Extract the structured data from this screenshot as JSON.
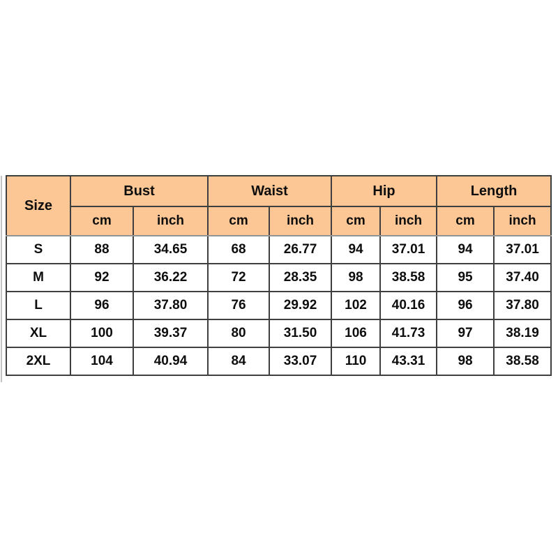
{
  "table": {
    "corner_label": "Size",
    "groups": [
      {
        "label": "Bust"
      },
      {
        "label": "Waist"
      },
      {
        "label": "Hip"
      },
      {
        "label": "Length"
      }
    ],
    "unit_labels": [
      "cm",
      "inch",
      "cm",
      "inch",
      "cm",
      "inch",
      "cm",
      "inch"
    ],
    "rows": [
      {
        "size": "S",
        "values": [
          "88",
          "34.65",
          "68",
          "26.77",
          "94",
          "37.01",
          "94",
          "37.01"
        ]
      },
      {
        "size": "M",
        "values": [
          "92",
          "36.22",
          "72",
          "28.35",
          "98",
          "38.58",
          "95",
          "37.40"
        ]
      },
      {
        "size": "L",
        "values": [
          "96",
          "37.80",
          "76",
          "29.92",
          "102",
          "40.16",
          "96",
          "37.80"
        ]
      },
      {
        "size": "XL",
        "values": [
          "100",
          "39.37",
          "80",
          "31.50",
          "106",
          "41.73",
          "97",
          "38.19"
        ]
      },
      {
        "size": "2XL",
        "values": [
          "104",
          "40.94",
          "84",
          "33.07",
          "110",
          "43.31",
          "98",
          "38.58"
        ]
      }
    ],
    "colors": {
      "header_bg": "#FCC795",
      "border": "#3F3F3F",
      "header_divider": "#949494",
      "text": "#0D0D0D",
      "background": "#FFFFFF",
      "left_shadow_line": "#C4C4C4"
    }
  },
  "chart_data": {
    "type": "table",
    "title": "Garment size chart",
    "columns": [
      "Size",
      "Bust cm",
      "Bust inch",
      "Waist cm",
      "Waist inch",
      "Hip cm",
      "Hip inch",
      "Length cm",
      "Length inch"
    ],
    "rows": [
      [
        "S",
        "88",
        "34.65",
        "68",
        "26.77",
        "94",
        "37.01",
        "94",
        "37.01"
      ],
      [
        "M",
        "92",
        "36.22",
        "72",
        "28.35",
        "98",
        "38.58",
        "95",
        "37.40"
      ],
      [
        "L",
        "96",
        "37.80",
        "76",
        "29.92",
        "102",
        "40.16",
        "96",
        "37.80"
      ],
      [
        "XL",
        "100",
        "39.37",
        "80",
        "31.50",
        "106",
        "41.73",
        "97",
        "38.19"
      ],
      [
        "2XL",
        "104",
        "40.94",
        "84",
        "33.07",
        "110",
        "43.31",
        "98",
        "38.58"
      ]
    ]
  }
}
